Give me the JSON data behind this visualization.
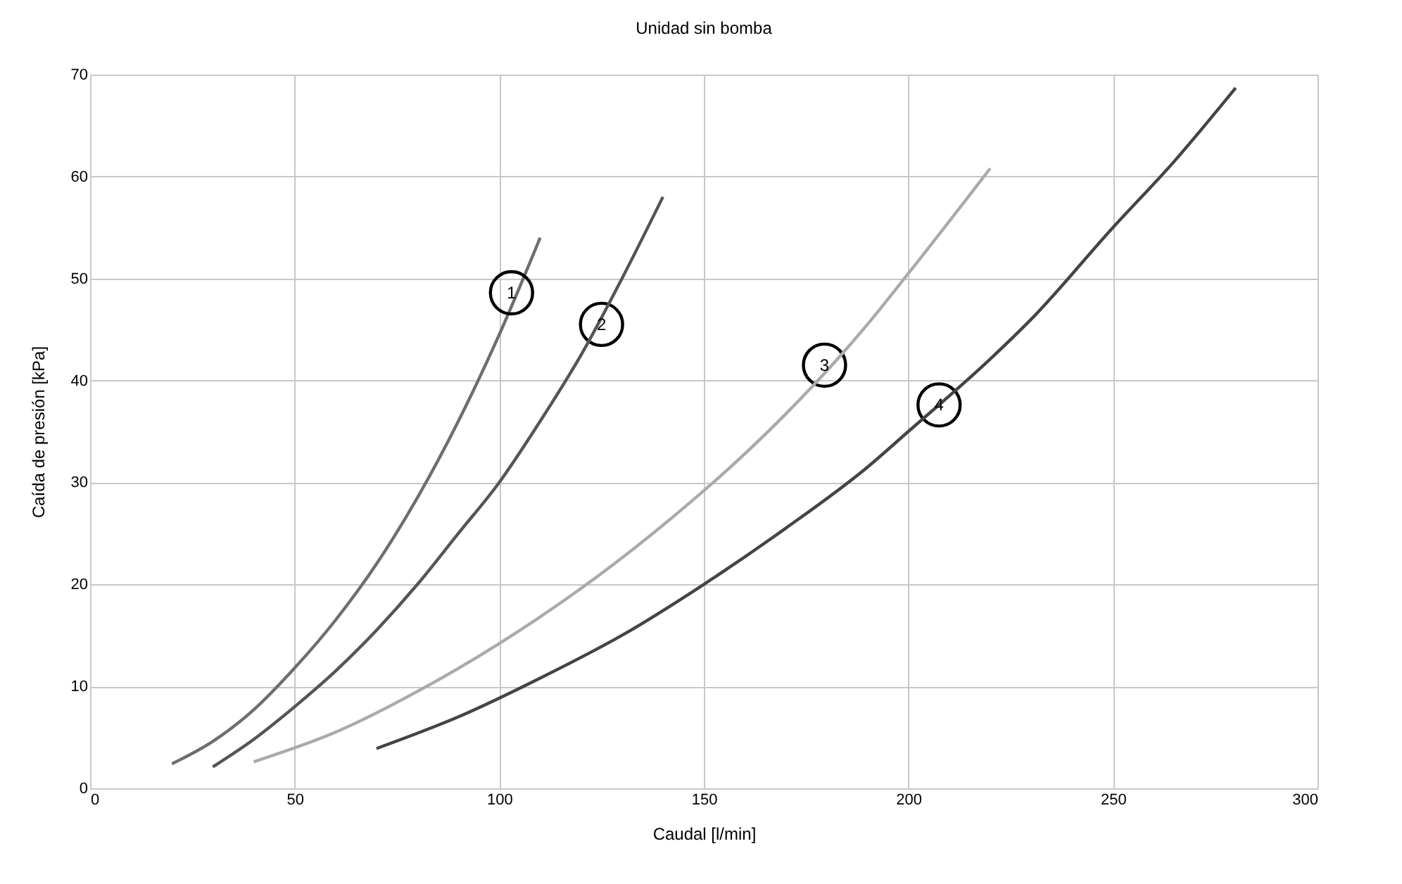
{
  "chart_data": {
    "type": "line",
    "title": "Unidad sin bomba",
    "xlabel": "Caudal [l/min]",
    "ylabel": "Caída de presión [kPa]",
    "xlim": [
      0,
      300
    ],
    "xticks": [
      0,
      50,
      100,
      150,
      200,
      250,
      300
    ],
    "ylim": [
      0,
      70
    ],
    "yticks": [
      0,
      10,
      20,
      30,
      40,
      50,
      60,
      70
    ],
    "grid": true,
    "marker": "none",
    "line_style": "solid",
    "series": [
      {
        "color": "#6e6e6e",
        "x": [
          20,
          30,
          40,
          50,
          60,
          70,
          80,
          90,
          100,
          110
        ],
        "values": [
          2.4,
          4.6,
          7.7,
          11.8,
          16.5,
          22,
          28.5,
          36,
          44.5,
          54
        ]
      },
      {
        "color": "#555555",
        "x": [
          30,
          40,
          50,
          60,
          70,
          80,
          90,
          100,
          110,
          120,
          130,
          140
        ],
        "values": [
          2.1,
          4.8,
          8,
          11.5,
          15.5,
          20,
          25,
          30,
          36,
          42.5,
          50,
          58
        ]
      },
      {
        "color": "#aaaaaa",
        "x": [
          40,
          60,
          80,
          100,
          120,
          140,
          160,
          170,
          190,
          200,
          220
        ],
        "values": [
          2.6,
          5.5,
          9.5,
          14.2,
          19.6,
          25.8,
          32.8,
          36.7,
          45.5,
          50.5,
          60.8
        ]
      },
      {
        "color": "#444444",
        "x": [
          70,
          90,
          110,
          130,
          150,
          170,
          190,
          200,
          220,
          230,
          250,
          265,
          280
        ],
        "values": [
          3.9,
          7,
          10.8,
          15,
          20,
          25.5,
          31.5,
          35,
          42.1,
          46,
          55,
          61.5,
          68.7
        ]
      }
    ],
    "annotations": [
      {
        "text": "1",
        "x": 103,
        "y": 48.6
      },
      {
        "text": "2",
        "x": 125,
        "y": 45.5
      },
      {
        "text": "3",
        "x": 179.5,
        "y": 41.5
      },
      {
        "text": "4",
        "x": 207.5,
        "y": 37.6
      }
    ]
  }
}
